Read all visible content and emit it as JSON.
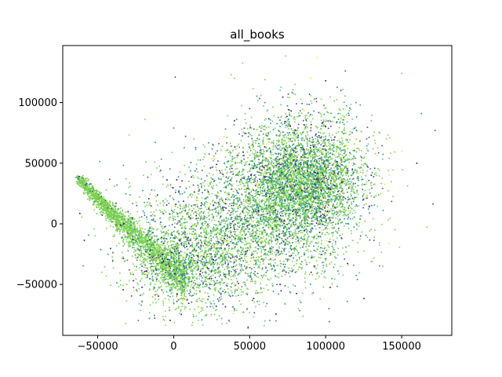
{
  "chart_data": {
    "type": "scatter",
    "title": "all_books",
    "xlabel": "",
    "ylabel": "",
    "xlim": [
      -73000,
      183000
    ],
    "ylim": [
      -92000,
      147000
    ],
    "x_ticks": [
      -50000,
      0,
      50000,
      100000,
      150000
    ],
    "y_ticks": [
      -50000,
      0,
      50000,
      100000
    ],
    "x_tick_labels": [
      "−50000",
      "0",
      "50000",
      "100000",
      "150000"
    ],
    "y_tick_labels": [
      "−50000",
      "0",
      "50000",
      "100000"
    ],
    "grid": false,
    "legend": "none",
    "colormap": [
      "#440154",
      "#3b528b",
      "#21918c",
      "#5ec962",
      "#7ad151",
      "#fde725"
    ],
    "dominant_color": "#7ad151",
    "series": [
      {
        "values": [
          [
            -62000,
            39000
          ],
          [
            -58000,
            32000
          ],
          [
            -55000,
            27000
          ],
          [
            -50000,
            20000
          ],
          [
            -45000,
            13000
          ],
          [
            -40000,
            6000
          ],
          [
            -35000,
            -1000
          ],
          [
            -30000,
            -8000
          ],
          [
            -25000,
            -14000
          ],
          [
            -20000,
            -20000
          ],
          [
            -15000,
            -25000
          ],
          [
            -10000,
            -30000
          ],
          [
            -5000,
            -34000
          ],
          [
            0,
            -38000
          ],
          [
            5000,
            -42000
          ],
          [
            10000,
            -48000
          ],
          [
            15000,
            -55000
          ],
          [
            20000,
            -62000
          ],
          [
            28000,
            -68000
          ],
          [
            40000,
            -70000
          ],
          [
            55000,
            -64000
          ],
          [
            60000,
            -80000
          ],
          [
            30000,
            -76000
          ],
          [
            45000,
            -73000
          ],
          [
            -30000,
            10000
          ],
          [
            -15000,
            15000
          ],
          [
            0,
            20000
          ],
          [
            10000,
            35000
          ],
          [
            20000,
            55000
          ],
          [
            30000,
            70000
          ],
          [
            40000,
            85000
          ],
          [
            50000,
            95000
          ],
          [
            60000,
            100000
          ],
          [
            70000,
            110000
          ],
          [
            80000,
            115000
          ],
          [
            90000,
            120000
          ],
          [
            100000,
            118000
          ],
          [
            110000,
            110000
          ],
          [
            120000,
            100000
          ],
          [
            130000,
            85000
          ],
          [
            140000,
            70000
          ],
          [
            150000,
            60000
          ],
          [
            160000,
            50000
          ],
          [
            172000,
            77000
          ],
          [
            163000,
            91000
          ],
          [
            150000,
            124000
          ],
          [
            40000,
            120000
          ],
          [
            94000,
            137000
          ],
          [
            130000,
            40000
          ],
          [
            125000,
            20000
          ],
          [
            115000,
            0
          ],
          [
            105000,
            -20000
          ],
          [
            100000,
            -30000
          ],
          [
            95000,
            -45000
          ],
          [
            70000,
            -50000
          ],
          [
            80000,
            -40000
          ],
          [
            0,
            79000
          ],
          [
            20000,
            10000
          ],
          [
            50000,
            20000
          ],
          [
            60000,
            40000
          ],
          [
            70000,
            30000
          ],
          [
            80000,
            50000
          ],
          [
            90000,
            60000
          ],
          [
            100000,
            40000
          ],
          [
            110000,
            60000
          ],
          [
            120000,
            70000
          ],
          [
            100000,
            80000
          ],
          [
            90000,
            90000
          ],
          [
            75000,
            75000
          ]
        ]
      }
    ]
  }
}
